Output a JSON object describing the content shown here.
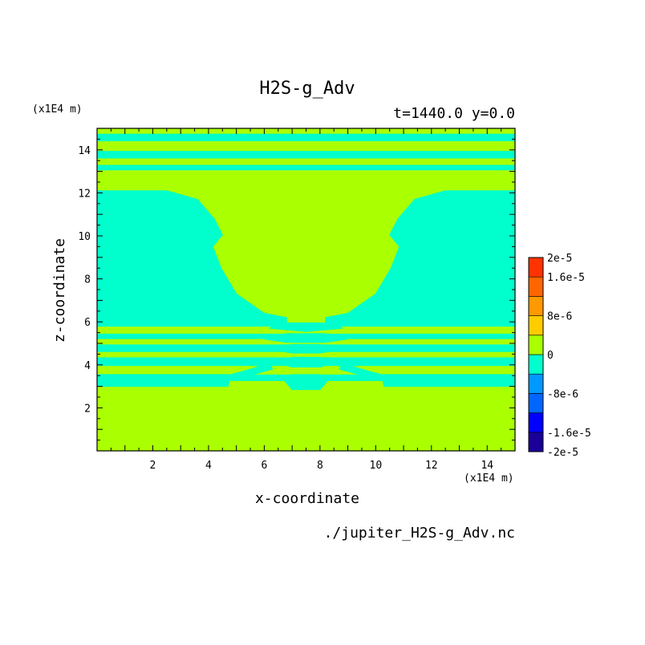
{
  "chart_data": {
    "type": "heatmap",
    "title": "H2S-g_Adv",
    "time_label": "t=1440.0 y=0.0",
    "xlabel": "x-coordinate",
    "ylabel": "z-coordinate",
    "x_unit": "(x1E4 m)",
    "z_unit": "(x1E4 m)",
    "source_file": "./jupiter_H2S-g_Adv.nc",
    "xlim": [
      0,
      15
    ],
    "zlim": [
      0,
      15
    ],
    "x_ticks": [
      2,
      4,
      6,
      8,
      10,
      12,
      14
    ],
    "z_ticks": [
      2,
      4,
      6,
      8,
      10,
      12,
      14
    ],
    "colorbar": {
      "levels": [
        -2e-05,
        -1.6e-05,
        -1.2e-05,
        -8e-06,
        -4e-06,
        0,
        4e-06,
        8e-06,
        1.2e-05,
        1.6e-05,
        2e-05
      ],
      "colors": [
        "#1a0099",
        "#0000ff",
        "#0066ff",
        "#0099ff",
        "#00ffcc",
        "#aaff00",
        "#ffcc00",
        "#ff9900",
        "#ff6600",
        "#ff3300"
      ],
      "tick_labels": [
        "2e-5",
        "1.6e-5",
        "8e-6",
        "0",
        "-8e-6",
        "-1.6e-5",
        "-2e-5"
      ],
      "tick_values": [
        2e-05,
        1.6e-05,
        8e-06,
        0,
        -8e-06,
        -1.6e-05,
        -2e-05
      ]
    },
    "field": {
      "background_value": 0,
      "negative_regions": [
        {
          "shape": "band",
          "z": [
            14.4,
            14.75
          ]
        },
        {
          "shape": "band",
          "z": [
            13.6,
            13.95
          ]
        },
        {
          "shape": "band",
          "z": [
            13.05,
            13.3
          ]
        },
        {
          "shape": "polygon",
          "points": [
            [
              0,
              12.1
            ],
            [
              2.5,
              12.1
            ],
            [
              3.6,
              11.7
            ],
            [
              4.2,
              10.8
            ],
            [
              4.5,
              10.05
            ],
            [
              4.15,
              9.5
            ],
            [
              4.45,
              8.5
            ],
            [
              5.0,
              7.3
            ],
            [
              6.0,
              6.4
            ],
            [
              6.8,
              6.2
            ],
            [
              6.8,
              5.8
            ],
            [
              0,
              5.8
            ]
          ]
        },
        {
          "shape": "polygon",
          "points": [
            [
              15,
              12.1
            ],
            [
              12.5,
              12.1
            ],
            [
              11.4,
              11.7
            ],
            [
              10.8,
              10.8
            ],
            [
              10.5,
              10.05
            ],
            [
              10.85,
              9.5
            ],
            [
              10.55,
              8.5
            ],
            [
              10.0,
              7.3
            ],
            [
              9.0,
              6.4
            ],
            [
              8.2,
              6.2
            ],
            [
              8.2,
              5.8
            ],
            [
              15,
              5.8
            ]
          ]
        },
        {
          "shape": "band",
          "z": [
            5.2,
            5.45
          ]
        },
        {
          "shape": "band",
          "z": [
            4.6,
            4.95
          ]
        },
        {
          "shape": "band",
          "z": [
            3.95,
            4.35
          ]
        },
        {
          "shape": "band",
          "z": [
            3.25,
            3.55
          ]
        },
        {
          "shape": "polygon",
          "points": [
            [
              0,
              3.0
            ],
            [
              4.7,
              3.0
            ],
            [
              4.8,
              3.55
            ],
            [
              0,
              3.55
            ]
          ]
        },
        {
          "shape": "polygon",
          "points": [
            [
              15,
              3.0
            ],
            [
              10.3,
              3.0
            ],
            [
              10.2,
              3.55
            ],
            [
              15,
              3.55
            ]
          ]
        },
        {
          "shape": "polygon",
          "points": [
            [
              6.4,
              5.95
            ],
            [
              8.6,
              5.95
            ],
            [
              8.8,
              5.7
            ],
            [
              7.5,
              5.55
            ],
            [
              6.2,
              5.7
            ]
          ]
        },
        {
          "shape": "polygon",
          "points": [
            [
              6.0,
              5.2
            ],
            [
              6.8,
              5.45
            ],
            [
              8.2,
              5.45
            ],
            [
              9.0,
              5.2
            ],
            [
              8.2,
              5.05
            ],
            [
              6.8,
              5.05
            ]
          ]
        },
        {
          "shape": "polygon",
          "points": [
            [
              6.3,
              4.7
            ],
            [
              7.0,
              4.95
            ],
            [
              8.0,
              4.95
            ],
            [
              8.7,
              4.7
            ],
            [
              8.0,
              4.55
            ],
            [
              7.0,
              4.55
            ]
          ]
        },
        {
          "shape": "polygon",
          "points": [
            [
              6.4,
              4.1
            ],
            [
              7.0,
              4.35
            ],
            [
              8.0,
              4.35
            ],
            [
              8.6,
              4.1
            ],
            [
              8.0,
              3.9
            ],
            [
              7.0,
              3.9
            ]
          ]
        },
        {
          "shape": "polygon",
          "points": [
            [
              6.7,
              3.3
            ],
            [
              7.0,
              2.85
            ],
            [
              8.0,
              2.85
            ],
            [
              8.3,
              3.3
            ],
            [
              8.0,
              3.55
            ],
            [
              7.0,
              3.55
            ]
          ]
        },
        {
          "shape": "polygon",
          "points": [
            [
              4.8,
              3.55
            ],
            [
              5.5,
              3.8
            ],
            [
              6.2,
              4.1
            ],
            [
              6.3,
              3.8
            ],
            [
              5.6,
              3.55
            ]
          ]
        },
        {
          "shape": "polygon",
          "points": [
            [
              10.2,
              3.55
            ],
            [
              9.5,
              3.8
            ],
            [
              8.8,
              4.1
            ],
            [
              8.7,
              3.8
            ],
            [
              9.4,
              3.55
            ]
          ]
        }
      ]
    }
  }
}
